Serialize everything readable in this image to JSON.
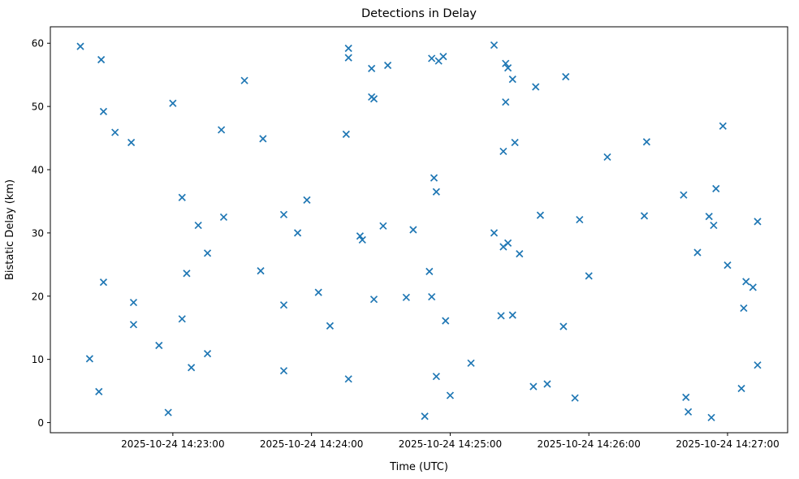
{
  "chart_data": {
    "type": "scatter",
    "title": "Detections in Delay",
    "xlabel": "Time (UTC)",
    "ylabel": "Bistatic Delay (km)",
    "date": "2025-10-24",
    "marker": "x",
    "marker_color": "#1f77b4",
    "background_color": "#ffffff",
    "axis_color": "#000000",
    "grid": false,
    "legend": false,
    "x_axis": {
      "range_time": [
        "14:22:07",
        "14:27:26"
      ],
      "ticks": [
        {
          "time": "14:23:00",
          "label": "2025-10-24 14:23:00"
        },
        {
          "time": "14:24:00",
          "label": "2025-10-24 14:24:00"
        },
        {
          "time": "14:25:00",
          "label": "2025-10-24 14:25:00"
        },
        {
          "time": "14:26:00",
          "label": "2025-10-24 14:26:00"
        },
        {
          "time": "14:27:00",
          "label": "2025-10-24 14:27:00"
        }
      ]
    },
    "y_axis": {
      "range": [
        -1.6,
        62.6
      ],
      "ticks": [
        0,
        10,
        20,
        30,
        40,
        50,
        60
      ]
    },
    "points_columns": [
      "time_utc",
      "bistatic_delay_km"
    ],
    "points": [
      [
        "14:22:20",
        59.5
      ],
      [
        "14:22:24",
        10.1
      ],
      [
        "14:22:28",
        4.9
      ],
      [
        "14:22:29",
        57.4
      ],
      [
        "14:22:30",
        49.2
      ],
      [
        "14:22:30",
        22.2
      ],
      [
        "14:22:35",
        45.9
      ],
      [
        "14:22:42",
        44.3
      ],
      [
        "14:22:43",
        19.0
      ],
      [
        "14:22:43",
        15.5
      ],
      [
        "14:22:54",
        12.2
      ],
      [
        "14:22:58",
        1.6
      ],
      [
        "14:23:00",
        50.5
      ],
      [
        "14:23:04",
        35.6
      ],
      [
        "14:23:04",
        16.4
      ],
      [
        "14:23:06",
        23.6
      ],
      [
        "14:23:08",
        8.7
      ],
      [
        "14:23:11",
        31.2
      ],
      [
        "14:23:15",
        26.8
      ],
      [
        "14:23:15",
        10.9
      ],
      [
        "14:23:21",
        46.3
      ],
      [
        "14:23:22",
        32.5
      ],
      [
        "14:23:31",
        54.1
      ],
      [
        "14:23:38",
        24.0
      ],
      [
        "14:23:39",
        44.9
      ],
      [
        "14:23:48",
        32.9
      ],
      [
        "14:23:48",
        18.6
      ],
      [
        "14:23:48",
        8.2
      ],
      [
        "14:23:54",
        30.0
      ],
      [
        "14:23:58",
        35.2
      ],
      [
        "14:24:03",
        20.6
      ],
      [
        "14:24:08",
        15.3
      ],
      [
        "14:24:15",
        45.6
      ],
      [
        "14:24:16",
        59.2
      ],
      [
        "14:24:16",
        57.7
      ],
      [
        "14:24:16",
        6.9
      ],
      [
        "14:24:21",
        29.5
      ],
      [
        "14:24:22",
        28.9
      ],
      [
        "14:24:26",
        56.0
      ],
      [
        "14:24:26",
        51.5
      ],
      [
        "14:24:27",
        51.2
      ],
      [
        "14:24:27",
        19.5
      ],
      [
        "14:24:31",
        31.1
      ],
      [
        "14:24:33",
        56.5
      ],
      [
        "14:24:41",
        19.8
      ],
      [
        "14:24:44",
        30.5
      ],
      [
        "14:24:49",
        1.0
      ],
      [
        "14:24:51",
        23.9
      ],
      [
        "14:24:52",
        57.6
      ],
      [
        "14:24:52",
        19.9
      ],
      [
        "14:24:53",
        38.7
      ],
      [
        "14:24:54",
        36.5
      ],
      [
        "14:24:54",
        7.3
      ],
      [
        "14:24:55",
        57.2
      ],
      [
        "14:24:57",
        57.9
      ],
      [
        "14:24:58",
        16.1
      ],
      [
        "14:25:00",
        4.3
      ],
      [
        "14:25:09",
        9.4
      ],
      [
        "14:25:19",
        59.7
      ],
      [
        "14:25:19",
        30.0
      ],
      [
        "14:25:22",
        16.9
      ],
      [
        "14:25:23",
        42.9
      ],
      [
        "14:25:23",
        27.8
      ],
      [
        "14:25:24",
        56.8
      ],
      [
        "14:25:24",
        50.7
      ],
      [
        "14:25:25",
        56.1
      ],
      [
        "14:25:25",
        28.4
      ],
      [
        "14:25:27",
        54.3
      ],
      [
        "14:25:27",
        17.0
      ],
      [
        "14:25:28",
        44.3
      ],
      [
        "14:25:30",
        26.7
      ],
      [
        "14:25:36",
        5.7
      ],
      [
        "14:25:37",
        53.1
      ],
      [
        "14:25:39",
        32.8
      ],
      [
        "14:25:42",
        6.1
      ],
      [
        "14:25:49",
        15.2
      ],
      [
        "14:25:50",
        54.7
      ],
      [
        "14:25:54",
        3.9
      ],
      [
        "14:25:56",
        32.1
      ],
      [
        "14:26:00",
        23.2
      ],
      [
        "14:26:08",
        42.0
      ],
      [
        "14:26:24",
        32.7
      ],
      [
        "14:26:25",
        44.4
      ],
      [
        "14:26:41",
        36.0
      ],
      [
        "14:26:42",
        4.0
      ],
      [
        "14:26:43",
        1.7
      ],
      [
        "14:26:47",
        26.9
      ],
      [
        "14:26:52",
        32.6
      ],
      [
        "14:26:53",
        0.8
      ],
      [
        "14:26:54",
        31.2
      ],
      [
        "14:26:55",
        37.0
      ],
      [
        "14:26:58",
        46.9
      ],
      [
        "14:27:00",
        24.9
      ],
      [
        "14:27:06",
        5.4
      ],
      [
        "14:27:07",
        18.1
      ],
      [
        "14:27:08",
        22.3
      ],
      [
        "14:27:11",
        21.4
      ],
      [
        "14:27:13",
        31.8
      ],
      [
        "14:27:13",
        9.1
      ]
    ]
  }
}
